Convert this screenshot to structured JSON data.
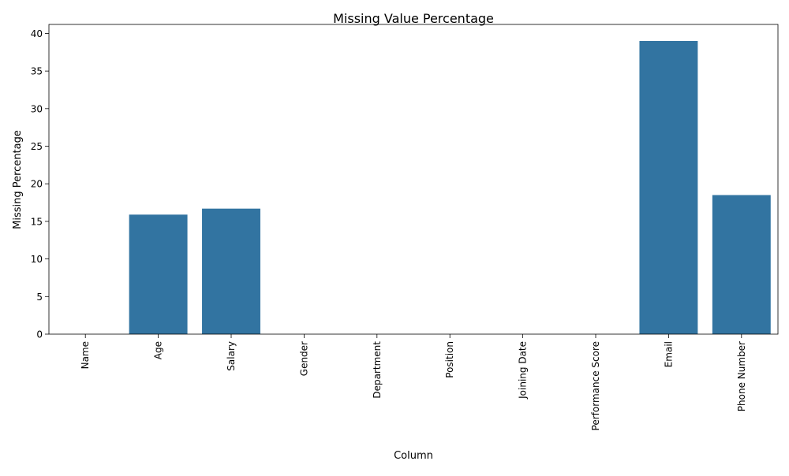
{
  "chart_data": {
    "type": "bar",
    "title": "Missing Value Percentage",
    "xlabel": "Column",
    "ylabel": "Missing Percentage",
    "categories": [
      "Name",
      "Age",
      "Salary",
      "Gender",
      "Department",
      "Position",
      "Joining Date",
      "Performance Score",
      "Email",
      "Phone Number"
    ],
    "values": [
      0,
      15.9,
      16.7,
      0,
      0,
      0,
      0,
      0,
      39.0,
      18.5
    ],
    "ylim": [
      0,
      41.2
    ],
    "yticks": [
      0,
      5,
      10,
      15,
      20,
      25,
      30,
      35,
      40
    ],
    "bar_color": "#3274a1",
    "grid": false,
    "legend": "none"
  }
}
